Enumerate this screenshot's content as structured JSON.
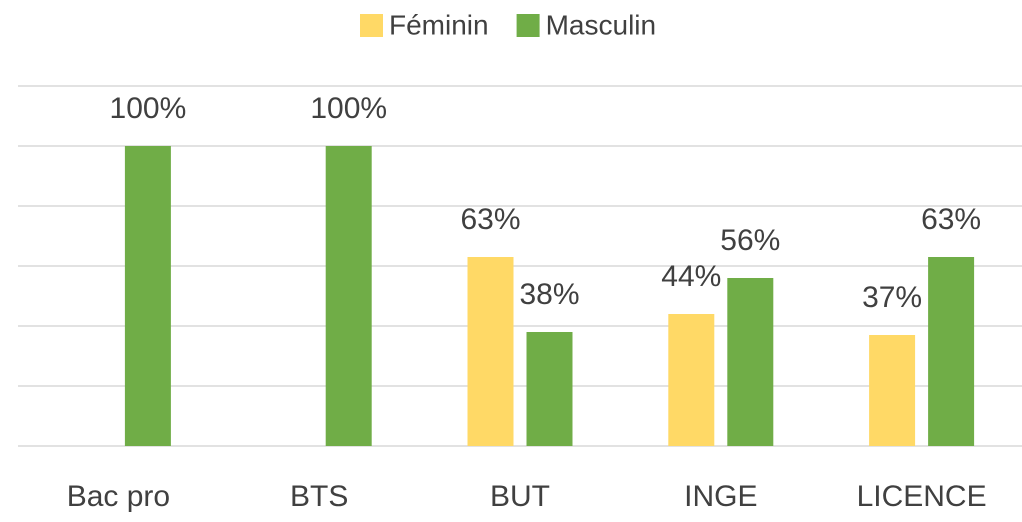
{
  "chart_data": {
    "type": "bar",
    "categories": [
      "Bac pro",
      "BTS",
      "BUT",
      "INGE",
      "LICENCE"
    ],
    "series": [
      {
        "name": "Féminin",
        "color": "#FFD966",
        "values": [
          null,
          null,
          63,
          44,
          37
        ],
        "value_labels": [
          null,
          null,
          "63%",
          "44%",
          "37%"
        ]
      },
      {
        "name": "Masculin",
        "color": "#70AD47",
        "values": [
          100,
          100,
          38,
          56,
          63
        ],
        "value_labels": [
          "100%",
          "100%",
          "38%",
          "56%",
          "63%"
        ]
      }
    ],
    "ylim": [
      0,
      120
    ],
    "yticks": [
      0,
      20,
      40,
      60,
      80,
      100,
      120
    ],
    "grid": true,
    "legend": "top"
  }
}
